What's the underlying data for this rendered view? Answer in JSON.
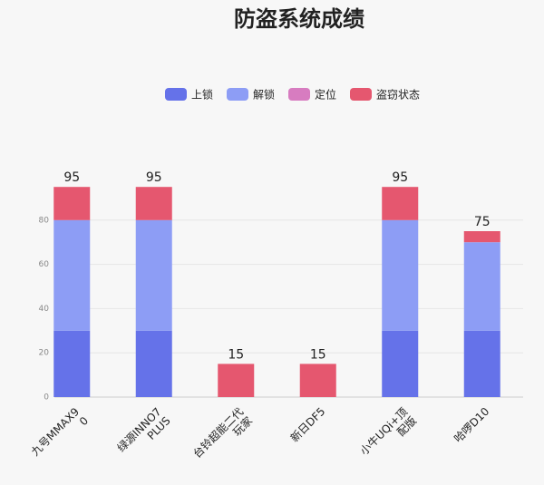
{
  "chart_data": {
    "type": "stacked_bar",
    "title": "防盗系统成绩",
    "categories": [
      "九号MMAX90",
      "绿源INNO7 PLUS",
      "台铃超能二代玩家",
      "新日DF5",
      "小牛UQi+顶配版",
      "哈啰D10"
    ],
    "series": [
      {
        "name": "上锁",
        "color": "#6572e9",
        "values": [
          30,
          30,
          0,
          0,
          30,
          30
        ]
      },
      {
        "name": "解锁",
        "color": "#8d9df5",
        "values": [
          50,
          50,
          0,
          0,
          50,
          40
        ]
      },
      {
        "name": "定位",
        "color": "#d77cc0",
        "values": [
          0,
          0,
          0,
          0,
          0,
          0
        ]
      },
      {
        "name": "盗窃状态",
        "color": "#e5576f",
        "values": [
          15,
          15,
          15,
          15,
          15,
          5
        ]
      }
    ],
    "totals": [
      95,
      95,
      15,
      15,
      95,
      75
    ],
    "ylim": [
      0,
      100
    ],
    "yticks": [
      0,
      20,
      40,
      60,
      80
    ],
    "grid": true,
    "legend": "top"
  }
}
